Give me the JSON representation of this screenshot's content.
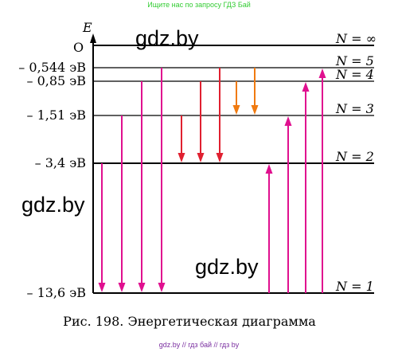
{
  "top_note": "Ищите нас по запросу ГДЗ Бай",
  "bottom_note": "gdz.by  //  гдз бай  //  гдз by",
  "axis": {
    "label": "E",
    "origin": "O"
  },
  "levels": [
    {
      "id": "inf",
      "n_label": "N = ∞",
      "energy_label": ""
    },
    {
      "id": "n5",
      "n_label": "N = 5",
      "energy_label": "– 0,544 эВ"
    },
    {
      "id": "n4",
      "n_label": "N = 4",
      "energy_label": "– 0,85 эВ"
    },
    {
      "id": "n3",
      "n_label": "N = 3",
      "energy_label": "– 1,51 эВ"
    },
    {
      "id": "n2",
      "n_label": "N = 2",
      "energy_label": "– 3,4 эВ"
    },
    {
      "id": "n1",
      "n_label": "N = 1",
      "energy_label": "– 13,6 эВ"
    }
  ],
  "transitions": [
    {
      "from": "n2",
      "to": "n1",
      "color": "#e0108f"
    },
    {
      "from": "n3",
      "to": "n1",
      "color": "#e0108f"
    },
    {
      "from": "n4",
      "to": "n1",
      "color": "#e0108f"
    },
    {
      "from": "n5",
      "to": "n1",
      "color": "#e0108f"
    },
    {
      "from": "n3",
      "to": "n2",
      "color": "#e02030"
    },
    {
      "from": "n4",
      "to": "n2",
      "color": "#e02030"
    },
    {
      "from": "n5",
      "to": "n2",
      "color": "#e02030"
    },
    {
      "from": "n4",
      "to": "n3",
      "color": "#f07a10"
    },
    {
      "from": "n5",
      "to": "n3",
      "color": "#f07a10"
    },
    {
      "from": "n1",
      "to": "n2",
      "color": "#e0108f"
    },
    {
      "from": "n1",
      "to": "n3",
      "color": "#e0108f"
    },
    {
      "from": "n1",
      "to": "n4",
      "color": "#e0108f"
    },
    {
      "from": "n1",
      "to": "n5",
      "color": "#e0108f"
    }
  ],
  "watermarks": [
    "gdz.by",
    "gdz.by",
    "gdz.by"
  ],
  "caption": "Рис. 198. Энергетическая диаграмма"
}
